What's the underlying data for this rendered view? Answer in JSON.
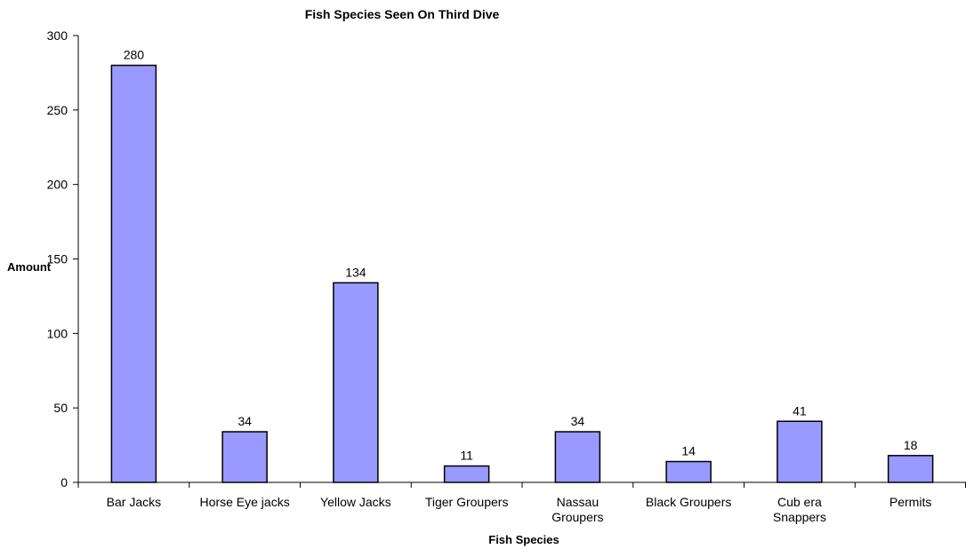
{
  "chart_data": {
    "type": "bar",
    "title": "Fish Species Seen On Third Dive",
    "xlabel": "Fish Species",
    "ylabel": "Amount",
    "categories": [
      "Bar Jacks",
      "Horse Eye jacks",
      "Yellow Jacks",
      "Tiger Groupers",
      "Nassau Groupers",
      "Black Groupers",
      "Cub era Snappers",
      "Permits"
    ],
    "category_lines": [
      [
        "Bar Jacks"
      ],
      [
        "Horse Eye jacks"
      ],
      [
        "Yellow Jacks"
      ],
      [
        "Tiger Groupers"
      ],
      [
        "Nassau",
        "Groupers"
      ],
      [
        "Black Groupers"
      ],
      [
        "Cub era",
        "Snappers"
      ],
      [
        "Permits"
      ]
    ],
    "values": [
      280,
      34,
      134,
      11,
      34,
      14,
      41,
      18
    ],
    "ylim": [
      0,
      300
    ],
    "yticks": [
      0,
      50,
      100,
      150,
      200,
      250,
      300
    ],
    "grid": false,
    "legend": "none",
    "colors": {
      "bar_fill": "#9999FF",
      "bar_stroke": "#000000",
      "axis": "#000000"
    }
  }
}
